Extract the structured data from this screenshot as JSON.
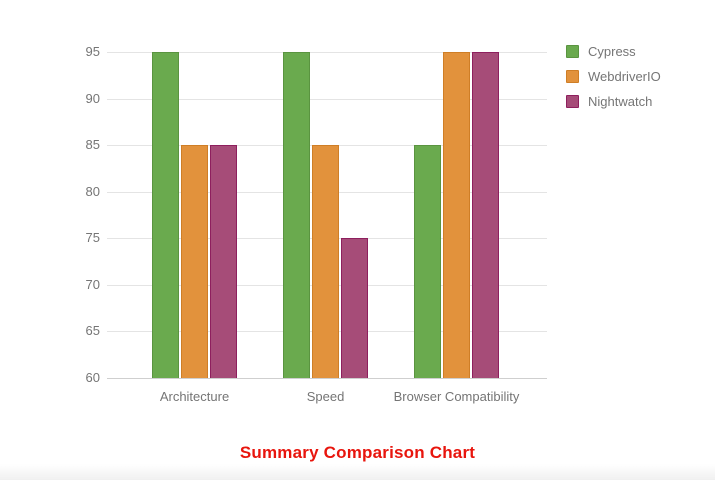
{
  "chart_data": {
    "type": "bar",
    "title": "Summary Comparison Chart",
    "title_color": "#e8150d",
    "categories": [
      "Architecture",
      "Speed",
      "Browser Compatibility"
    ],
    "series": [
      {
        "name": "Cypress",
        "color": "#6aaa4e",
        "border_color": "#5a9440",
        "values": [
          95,
          95,
          85
        ]
      },
      {
        "name": "WebdriverIO",
        "color": "#e2923c",
        "border_color": "#cf7e26",
        "values": [
          85,
          85,
          95
        ]
      },
      {
        "name": "Nightwatch",
        "color": "#a64c78",
        "border_color": "#8e1f5e",
        "values": [
          85,
          75,
          95
        ]
      }
    ],
    "ylim": [
      60,
      95
    ],
    "yticks": [
      60,
      65,
      70,
      75,
      80,
      85,
      90,
      95
    ],
    "grid": true,
    "legend_position": "right",
    "xlabel": "",
    "ylabel": "",
    "text_color": "#757575"
  }
}
